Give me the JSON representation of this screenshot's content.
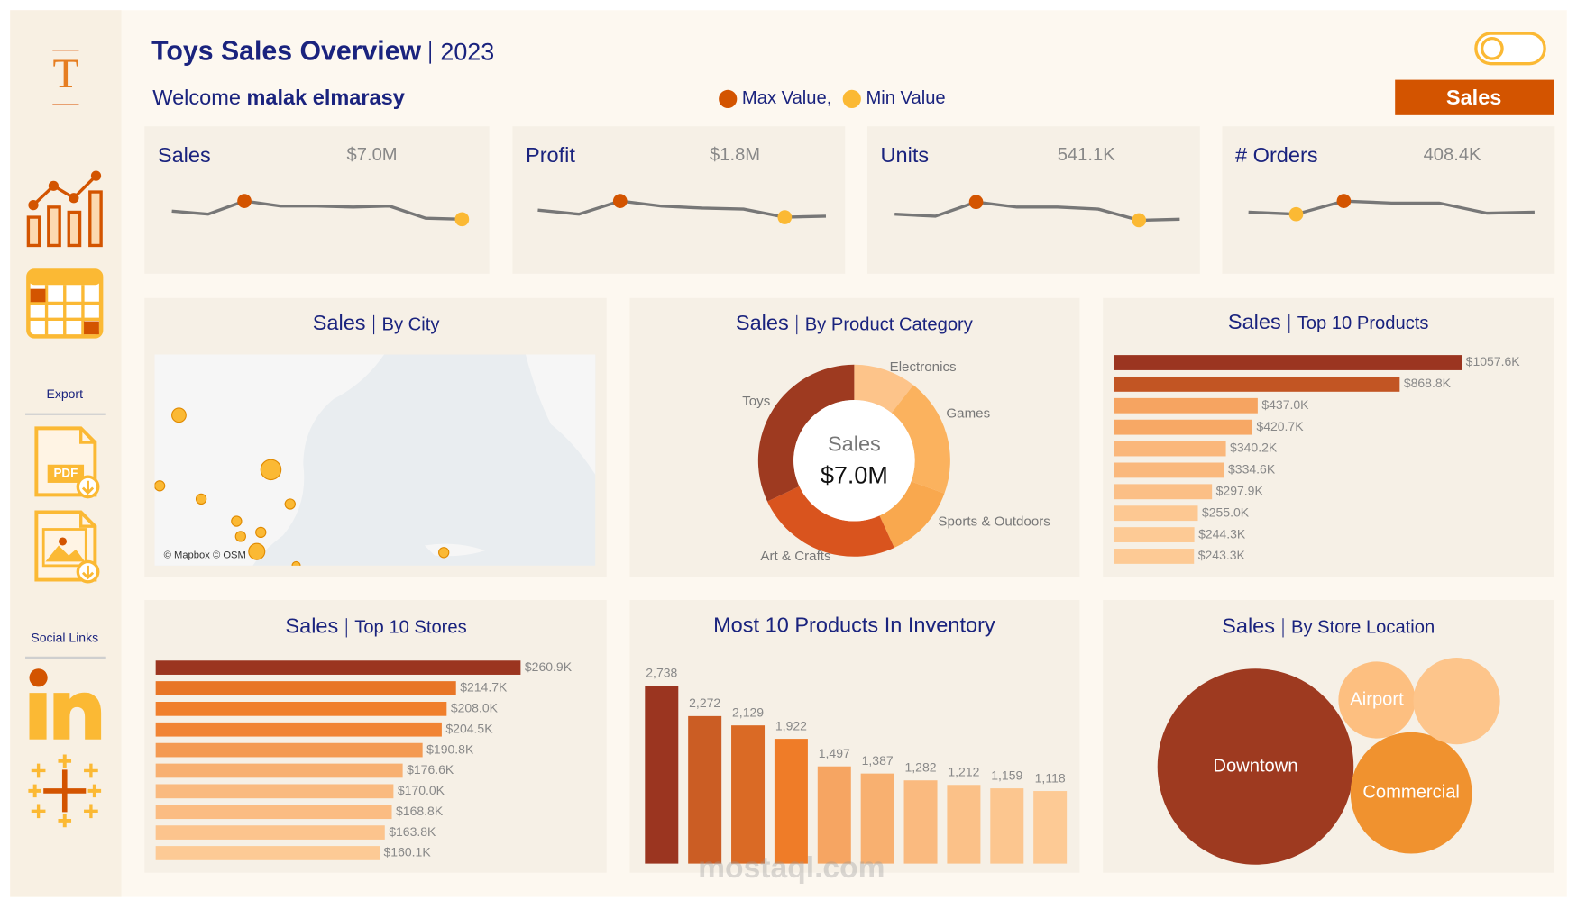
{
  "header": {
    "title": "Toys Sales Overview",
    "year": "2023",
    "welcome": "Welcome",
    "user": "malak elmarasy",
    "legend": [
      {
        "label": "Max Value,",
        "color": "#d35400"
      },
      {
        "label": "Min Value",
        "color": "#fbb934"
      }
    ],
    "button": "Sales"
  },
  "sidebar": {
    "logo": "T",
    "pdf_icon_label": "PDF",
    "export_label": "Export",
    "social_label": "Social Links"
  },
  "kpis": [
    {
      "label": "Sales",
      "value": "$7.0M",
      "trend": [
        23,
        20,
        33,
        28,
        28,
        27,
        28,
        16,
        15
      ]
    },
    {
      "label": "Profit",
      "value": "$1.8M",
      "trend": [
        24,
        20,
        33,
        28,
        26,
        25,
        17,
        18
      ]
    },
    {
      "label": "Units",
      "value": "541.1K",
      "trend": [
        20,
        18,
        32,
        27,
        27,
        25,
        14,
        15
      ]
    },
    {
      "label": "# Orders",
      "value": "408.4K",
      "trend": [
        22,
        20,
        33,
        31,
        31,
        21,
        22
      ]
    }
  ],
  "city_map": {
    "title": "Sales",
    "subtitle": "By City",
    "attribution": "© Mapbox © OSM"
  },
  "category_chart": {
    "type": "donut",
    "title": "Sales",
    "subtitle": "By Product Category",
    "center_label": "Sales",
    "center_value": "$7.0M",
    "categories": [
      "Electronics",
      "Games",
      "Sports & Outdoors",
      "Art & Crafts",
      "Toys"
    ],
    "values": [
      0.74,
      1.4,
      0.88,
      1.74,
      2.24
    ],
    "colors": [
      "#fdc48a",
      "#fbb25e",
      "#f9a84e",
      "#d9541e",
      "#9e3a20"
    ]
  },
  "products_chart": {
    "type": "hbar",
    "title": "Sales",
    "subtitle": "Top 10 Products",
    "values": [
      1057.6,
      868.8,
      437.0,
      420.7,
      340.2,
      334.6,
      297.9,
      255.0,
      244.3,
      243.3
    ],
    "value_labels": [
      "$1057.6K",
      "$868.8K",
      "$437.0K",
      "$420.7K",
      "$340.2K",
      "$334.6K",
      "$297.9K",
      "$255.0K",
      "$244.3K",
      "$243.3K"
    ],
    "color_scale": [
      "#fdca95",
      "#ef7b27",
      "#9b3520"
    ]
  },
  "stores_chart": {
    "type": "hbar",
    "title": "Sales",
    "subtitle": "Top 10 Stores",
    "values": [
      260.9,
      214.7,
      208.0,
      204.5,
      190.8,
      176.6,
      170.0,
      168.8,
      163.8,
      160.1
    ],
    "value_labels": [
      "$260.9K",
      "$214.7K",
      "$208.0K",
      "$204.5K",
      "$190.8K",
      "$176.6K",
      "$170.0K",
      "$168.8K",
      "$163.8K",
      "$160.1K"
    ],
    "color_scale": [
      "#fdca95",
      "#ef7b27",
      "#9b3520"
    ]
  },
  "inventory_chart": {
    "type": "vbar",
    "title": "Most 10 Products In Inventory",
    "values": [
      2738,
      2272,
      2129,
      1922,
      1497,
      1387,
      1282,
      1212,
      1159,
      1118
    ],
    "value_labels": [
      "2,738",
      "2,272",
      "2,129",
      "1,922",
      "1,497",
      "1,387",
      "1,282",
      "1,212",
      "1,159",
      "1,118"
    ],
    "color_scale": [
      "#fdca95",
      "#ef7b27",
      "#9b3520"
    ]
  },
  "location_chart": {
    "type": "bubble",
    "title": "Sales",
    "subtitle": "By Store Location",
    "categories": [
      "Downtown",
      "Airport",
      "Commercial",
      null
    ],
    "values": [
      4.04,
      0.62,
      1.55,
      0.79
    ],
    "colors": [
      "#9e3a20",
      "#fdbf80",
      "#f0922f",
      "#fdc58b"
    ]
  },
  "watermark": "mostaql.com"
}
